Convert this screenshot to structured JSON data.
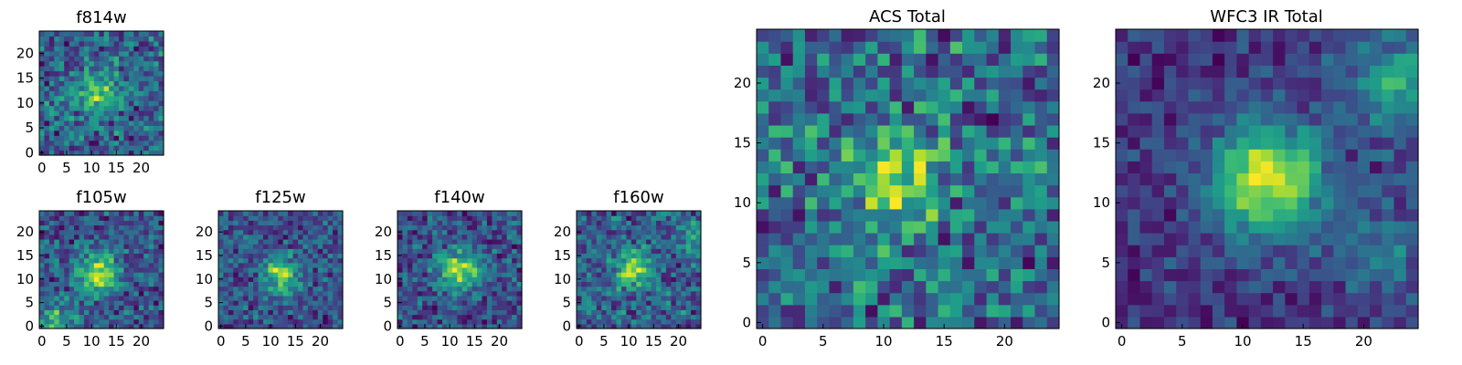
{
  "chart_data": [
    {
      "type": "heatmap",
      "title": "f814w",
      "xticks": [
        0,
        5,
        10,
        15,
        20
      ],
      "yticks": [
        0,
        5,
        10,
        15,
        20
      ],
      "grid": 25,
      "seed": 11,
      "noise": 0.42,
      "blobs": [
        [
          11,
          12,
          1.0,
          3.0
        ]
      ],
      "colormap": "viridis"
    },
    {
      "type": "heatmap",
      "title": "f105w",
      "xticks": [
        0,
        5,
        10,
        15,
        20
      ],
      "yticks": [
        0,
        5,
        10,
        15,
        20
      ],
      "grid": 25,
      "seed": 23,
      "noise": 0.25,
      "blobs": [
        [
          11,
          11,
          1.0,
          3.0
        ],
        [
          3,
          1,
          0.7,
          3.0
        ]
      ],
      "colormap": "viridis"
    },
    {
      "type": "heatmap",
      "title": "f125w",
      "xticks": [
        0,
        5,
        10,
        15,
        20
      ],
      "yticks": [
        0,
        5,
        10,
        15,
        20
      ],
      "grid": 25,
      "seed": 37,
      "noise": 0.25,
      "blobs": [
        [
          12,
          11,
          1.0,
          2.6
        ]
      ],
      "colormap": "viridis"
    },
    {
      "type": "heatmap",
      "title": "f140w",
      "xticks": [
        0,
        5,
        10,
        15,
        20
      ],
      "yticks": [
        0,
        5,
        10,
        15,
        20
      ],
      "grid": 25,
      "seed": 41,
      "noise": 0.25,
      "blobs": [
        [
          12,
          12,
          1.0,
          3.0
        ]
      ],
      "colormap": "viridis"
    },
    {
      "type": "heatmap",
      "title": "f160w",
      "xticks": [
        0,
        5,
        10,
        15,
        20
      ],
      "yticks": [
        0,
        5,
        10,
        15,
        20
      ],
      "grid": 25,
      "seed": 53,
      "noise": 0.3,
      "blobs": [
        [
          11,
          12,
          1.0,
          2.6
        ],
        [
          23,
          19,
          0.6,
          2.0
        ]
      ],
      "colormap": "viridis"
    },
    {
      "type": "heatmap",
      "title": "ACS Total",
      "xticks": [
        0,
        5,
        10,
        15,
        20
      ],
      "yticks": [
        0,
        5,
        10,
        15,
        20
      ],
      "grid": 25,
      "seed": 67,
      "noise": 0.35,
      "blobs": [
        [
          11,
          12,
          0.9,
          2.6
        ]
      ],
      "colormap": "viridis"
    },
    {
      "type": "heatmap",
      "title": "WFC3 IR Total",
      "xticks": [
        0,
        5,
        10,
        15,
        20
      ],
      "yticks": [
        0,
        5,
        10,
        15,
        20
      ],
      "grid": 25,
      "seed": 79,
      "noise": 0.12,
      "blobs": [
        [
          12,
          12,
          1.0,
          3.2
        ],
        [
          23,
          20,
          0.5,
          3.0
        ],
        [
          21,
          6,
          0.35,
          2.5
        ]
      ],
      "colormap": "viridis"
    }
  ]
}
